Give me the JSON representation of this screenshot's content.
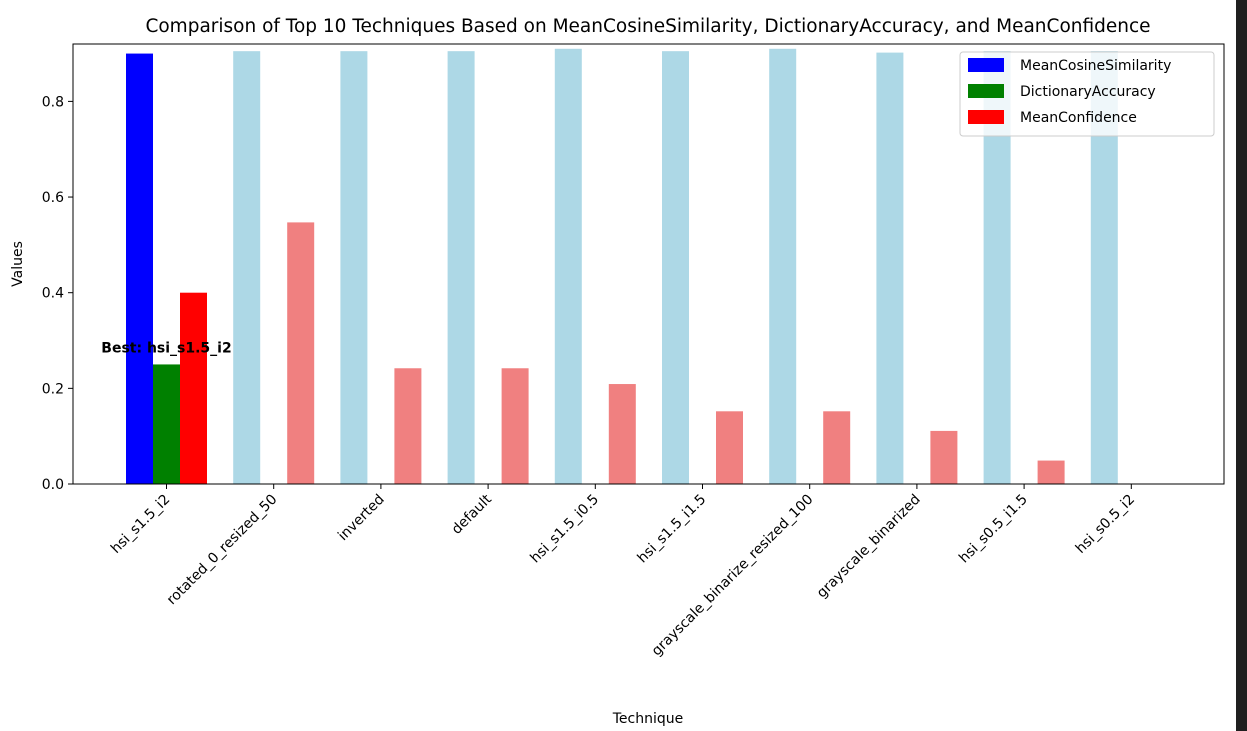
{
  "chart_data": {
    "type": "bar",
    "title": "Comparison of Top 10 Techniques Based on MeanCosineSimilarity, DictionaryAccuracy, and MeanConfidence",
    "xlabel": "Technique",
    "ylabel": "Values",
    "ylim": [
      0,
      0.92
    ],
    "yticks": [
      0.0,
      0.2,
      0.4,
      0.6,
      0.8
    ],
    "ytick_labels": [
      "0.0",
      "0.2",
      "0.4",
      "0.6",
      "0.8"
    ],
    "categories": [
      "hsi_s1.5_i2",
      "rotated_0_resized_50",
      "inverted",
      "default",
      "hsi_s1.5_i0.5",
      "hsi_s1.5_i1.5",
      "grayscale_binarize_resized_100",
      "grayscale_binarized",
      "hsi_s0.5_i1.5",
      "hsi_s0.5_i2"
    ],
    "series": [
      {
        "name": "MeanCosineSimilarity",
        "color": "#add8e6",
        "highlight_color": "#0000ff",
        "values": [
          0.9,
          0.905,
          0.905,
          0.905,
          0.91,
          0.905,
          0.91,
          0.902,
          0.905,
          0.905
        ]
      },
      {
        "name": "DictionaryAccuracy",
        "color": "#90ee90",
        "highlight_color": "#008000",
        "values": [
          0.25,
          0,
          0,
          0,
          0,
          0,
          0,
          0,
          0,
          0
        ]
      },
      {
        "name": "MeanConfidence",
        "color": "#f08080",
        "highlight_color": "#ff0000",
        "values": [
          0.4,
          0.547,
          0.242,
          0.242,
          0.209,
          0.152,
          0.152,
          0.111,
          0.049,
          0.0
        ]
      }
    ],
    "highlight_index": 0,
    "legend": {
      "position": "top-right",
      "entries": [
        {
          "label": "MeanCosineSimilarity",
          "color": "#0000ff"
        },
        {
          "label": "DictionaryAccuracy",
          "color": "#008000"
        },
        {
          "label": "MeanConfidence",
          "color": "#ff0000"
        }
      ]
    },
    "annotations": [
      {
        "text": "Best: hsi_s1.5_i2",
        "category_index": 0,
        "y": 0.285
      }
    ],
    "grid": false
  }
}
